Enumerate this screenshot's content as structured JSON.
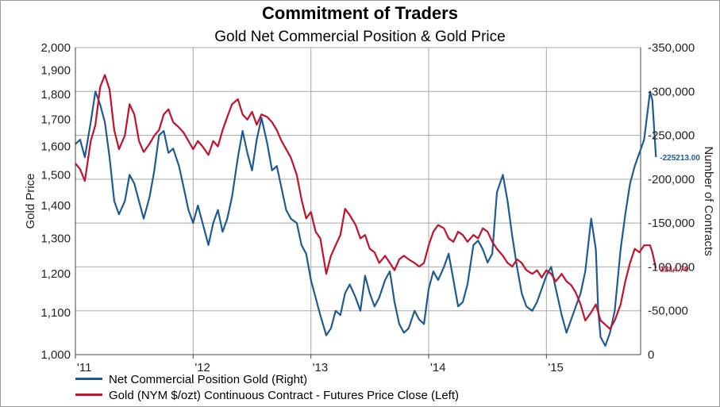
{
  "chart_data": {
    "type": "line",
    "title": "Commitment of Traders",
    "subtitle": "Gold Net Commercial Position & Gold Price",
    "y_left_label": "Gold Price",
    "y_right_label": "Number of Contracts",
    "y_left_ticks": [
      "1,000",
      "1,100",
      "1,200",
      "1,300",
      "1,400",
      "1,500",
      "1,600",
      "1,700",
      "1,800",
      "1,900",
      "2,000"
    ],
    "y_right_ticks": [
      "0",
      "-50,000",
      "-100,000",
      "-150,000",
      "-200,000",
      "-250,000",
      "-300,000",
      "-350,000"
    ],
    "y_left_range": [
      1000,
      2000
    ],
    "y_left_scale": "log",
    "y_right_range": [
      0,
      -350000
    ],
    "x_ticks": [
      "'11",
      "'12",
      "'13",
      "'14",
      "'15"
    ],
    "x_range": [
      2011.0,
      2015.8
    ],
    "grid": "vertical at year starts, horizontal at right-axis ticks",
    "colors": {
      "commercial": "#1f5b93",
      "gold": "#c0122c"
    },
    "series": [
      {
        "name": "Net Commercial Position Gold (Right)",
        "axis": "right",
        "end_label": "-225213.00",
        "points": [
          [
            2011.0,
            -240000
          ],
          [
            2011.04,
            -245000
          ],
          [
            2011.08,
            -225000
          ],
          [
            2011.13,
            -265000
          ],
          [
            2011.17,
            -300000
          ],
          [
            2011.21,
            -285000
          ],
          [
            2011.25,
            -265000
          ],
          [
            2011.29,
            -225000
          ],
          [
            2011.33,
            -175000
          ],
          [
            2011.37,
            -160000
          ],
          [
            2011.42,
            -175000
          ],
          [
            2011.46,
            -205000
          ],
          [
            2011.5,
            -195000
          ],
          [
            2011.54,
            -175000
          ],
          [
            2011.58,
            -155000
          ],
          [
            2011.63,
            -180000
          ],
          [
            2011.67,
            -210000
          ],
          [
            2011.71,
            -250000
          ],
          [
            2011.75,
            -255000
          ],
          [
            2011.79,
            -230000
          ],
          [
            2011.83,
            -235000
          ],
          [
            2011.88,
            -215000
          ],
          [
            2011.92,
            -190000
          ],
          [
            2011.96,
            -165000
          ],
          [
            2012.0,
            -150000
          ],
          [
            2012.04,
            -170000
          ],
          [
            2012.08,
            -150000
          ],
          [
            2012.13,
            -125000
          ],
          [
            2012.17,
            -150000
          ],
          [
            2012.21,
            -165000
          ],
          [
            2012.25,
            -140000
          ],
          [
            2012.29,
            -155000
          ],
          [
            2012.33,
            -180000
          ],
          [
            2012.38,
            -225000
          ],
          [
            2012.42,
            -255000
          ],
          [
            2012.46,
            -230000
          ],
          [
            2012.5,
            -210000
          ],
          [
            2012.54,
            -245000
          ],
          [
            2012.58,
            -270000
          ],
          [
            2012.63,
            -240000
          ],
          [
            2012.67,
            -210000
          ],
          [
            2012.71,
            -215000
          ],
          [
            2012.75,
            -190000
          ],
          [
            2012.79,
            -165000
          ],
          [
            2012.83,
            -155000
          ],
          [
            2012.88,
            -150000
          ],
          [
            2012.92,
            -125000
          ],
          [
            2012.96,
            -115000
          ],
          [
            2013.0,
            -85000
          ],
          [
            2013.04,
            -65000
          ],
          [
            2013.08,
            -45000
          ],
          [
            2013.13,
            -22000
          ],
          [
            2013.17,
            -30000
          ],
          [
            2013.21,
            -50000
          ],
          [
            2013.25,
            -45000
          ],
          [
            2013.29,
            -70000
          ],
          [
            2013.33,
            -80000
          ],
          [
            2013.38,
            -65000
          ],
          [
            2013.42,
            -50000
          ],
          [
            2013.46,
            -90000
          ],
          [
            2013.5,
            -70000
          ],
          [
            2013.54,
            -55000
          ],
          [
            2013.58,
            -65000
          ],
          [
            2013.63,
            -85000
          ],
          [
            2013.67,
            -95000
          ],
          [
            2013.71,
            -60000
          ],
          [
            2013.75,
            -35000
          ],
          [
            2013.79,
            -25000
          ],
          [
            2013.83,
            -30000
          ],
          [
            2013.88,
            -50000
          ],
          [
            2013.92,
            -40000
          ],
          [
            2013.96,
            -35000
          ],
          [
            2014.0,
            -75000
          ],
          [
            2014.04,
            -95000
          ],
          [
            2014.08,
            -85000
          ],
          [
            2014.13,
            -100000
          ],
          [
            2014.17,
            -115000
          ],
          [
            2014.21,
            -85000
          ],
          [
            2014.25,
            -55000
          ],
          [
            2014.29,
            -60000
          ],
          [
            2014.33,
            -80000
          ],
          [
            2014.38,
            -125000
          ],
          [
            2014.42,
            -130000
          ],
          [
            2014.46,
            -120000
          ],
          [
            2014.5,
            -105000
          ],
          [
            2014.54,
            -115000
          ],
          [
            2014.58,
            -185000
          ],
          [
            2014.63,
            -205000
          ],
          [
            2014.67,
            -175000
          ],
          [
            2014.71,
            -135000
          ],
          [
            2014.75,
            -100000
          ],
          [
            2014.79,
            -70000
          ],
          [
            2014.83,
            -55000
          ],
          [
            2014.88,
            -50000
          ],
          [
            2014.92,
            -60000
          ],
          [
            2014.96,
            -75000
          ],
          [
            2015.0,
            -90000
          ],
          [
            2015.04,
            -100000
          ],
          [
            2015.08,
            -75000
          ],
          [
            2015.13,
            -45000
          ],
          [
            2015.17,
            -25000
          ],
          [
            2015.21,
            -40000
          ],
          [
            2015.25,
            -55000
          ],
          [
            2015.29,
            -70000
          ],
          [
            2015.33,
            -95000
          ],
          [
            2015.38,
            -155000
          ],
          [
            2015.42,
            -120000
          ],
          [
            2015.44,
            -50000
          ],
          [
            2015.46,
            -20000
          ],
          [
            2015.5,
            -10000
          ],
          [
            2015.54,
            -25000
          ],
          [
            2015.58,
            -50000
          ],
          [
            2015.63,
            -120000
          ],
          [
            2015.67,
            -160000
          ],
          [
            2015.71,
            -195000
          ],
          [
            2015.75,
            -215000
          ],
          [
            2015.79,
            -230000
          ],
          [
            2015.83,
            -245000
          ],
          [
            2015.88,
            -300000
          ],
          [
            2015.9,
            -290000
          ],
          [
            2015.93,
            -225213
          ]
        ]
      },
      {
        "name": "Gold (NYM $/ozt) Continuous Contract - Futures Price Close  (Left)",
        "axis": "left",
        "end_label": "1214.70",
        "points": [
          [
            2011.0,
            1540
          ],
          [
            2011.04,
            1520
          ],
          [
            2011.08,
            1480
          ],
          [
            2011.13,
            1620
          ],
          [
            2011.17,
            1680
          ],
          [
            2011.21,
            1830
          ],
          [
            2011.25,
            1880
          ],
          [
            2011.29,
            1820
          ],
          [
            2011.33,
            1660
          ],
          [
            2011.37,
            1590
          ],
          [
            2011.42,
            1640
          ],
          [
            2011.46,
            1760
          ],
          [
            2011.5,
            1720
          ],
          [
            2011.54,
            1620
          ],
          [
            2011.58,
            1580
          ],
          [
            2011.63,
            1610
          ],
          [
            2011.67,
            1640
          ],
          [
            2011.71,
            1660
          ],
          [
            2011.75,
            1720
          ],
          [
            2011.79,
            1740
          ],
          [
            2011.83,
            1690
          ],
          [
            2011.88,
            1670
          ],
          [
            2011.92,
            1650
          ],
          [
            2011.96,
            1620
          ],
          [
            2012.0,
            1590
          ],
          [
            2012.04,
            1620
          ],
          [
            2012.08,
            1600
          ],
          [
            2012.13,
            1570
          ],
          [
            2012.17,
            1620
          ],
          [
            2012.21,
            1600
          ],
          [
            2012.25,
            1660
          ],
          [
            2012.29,
            1710
          ],
          [
            2012.33,
            1760
          ],
          [
            2012.38,
            1780
          ],
          [
            2012.42,
            1720
          ],
          [
            2012.46,
            1700
          ],
          [
            2012.5,
            1730
          ],
          [
            2012.54,
            1680
          ],
          [
            2012.58,
            1720
          ],
          [
            2012.63,
            1710
          ],
          [
            2012.67,
            1690
          ],
          [
            2012.71,
            1660
          ],
          [
            2012.75,
            1620
          ],
          [
            2012.79,
            1590
          ],
          [
            2012.83,
            1560
          ],
          [
            2012.88,
            1500
          ],
          [
            2012.92,
            1420
          ],
          [
            2012.96,
            1360
          ],
          [
            2013.0,
            1380
          ],
          [
            2013.04,
            1320
          ],
          [
            2013.08,
            1300
          ],
          [
            2013.13,
            1200
          ],
          [
            2013.17,
            1250
          ],
          [
            2013.21,
            1280
          ],
          [
            2013.25,
            1310
          ],
          [
            2013.29,
            1390
          ],
          [
            2013.33,
            1370
          ],
          [
            2013.38,
            1340
          ],
          [
            2013.42,
            1300
          ],
          [
            2013.46,
            1310
          ],
          [
            2013.5,
            1270
          ],
          [
            2013.54,
            1260
          ],
          [
            2013.58,
            1230
          ],
          [
            2013.63,
            1250
          ],
          [
            2013.67,
            1230
          ],
          [
            2013.71,
            1210
          ],
          [
            2013.75,
            1240
          ],
          [
            2013.79,
            1250
          ],
          [
            2013.83,
            1240
          ],
          [
            2013.88,
            1230
          ],
          [
            2013.92,
            1220
          ],
          [
            2013.96,
            1230
          ],
          [
            2014.0,
            1280
          ],
          [
            2014.04,
            1320
          ],
          [
            2014.08,
            1340
          ],
          [
            2014.13,
            1330
          ],
          [
            2014.17,
            1300
          ],
          [
            2014.21,
            1290
          ],
          [
            2014.25,
            1320
          ],
          [
            2014.29,
            1310
          ],
          [
            2014.33,
            1290
          ],
          [
            2014.38,
            1310
          ],
          [
            2014.42,
            1300
          ],
          [
            2014.46,
            1330
          ],
          [
            2014.5,
            1320
          ],
          [
            2014.54,
            1290
          ],
          [
            2014.58,
            1270
          ],
          [
            2014.63,
            1250
          ],
          [
            2014.67,
            1230
          ],
          [
            2014.71,
            1220
          ],
          [
            2014.75,
            1240
          ],
          [
            2014.79,
            1230
          ],
          [
            2014.83,
            1210
          ],
          [
            2014.88,
            1200
          ],
          [
            2014.92,
            1210
          ],
          [
            2014.96,
            1190
          ],
          [
            2015.0,
            1210
          ],
          [
            2015.04,
            1200
          ],
          [
            2015.08,
            1180
          ],
          [
            2015.13,
            1200
          ],
          [
            2015.17,
            1180
          ],
          [
            2015.21,
            1170
          ],
          [
            2015.25,
            1150
          ],
          [
            2015.29,
            1120
          ],
          [
            2015.33,
            1080
          ],
          [
            2015.38,
            1100
          ],
          [
            2015.42,
            1120
          ],
          [
            2015.46,
            1080
          ],
          [
            2015.5,
            1070
          ],
          [
            2015.54,
            1060
          ],
          [
            2015.58,
            1080
          ],
          [
            2015.63,
            1120
          ],
          [
            2015.67,
            1180
          ],
          [
            2015.71,
            1230
          ],
          [
            2015.75,
            1270
          ],
          [
            2015.79,
            1260
          ],
          [
            2015.83,
            1280
          ],
          [
            2015.88,
            1280
          ],
          [
            2015.9,
            1260
          ],
          [
            2015.93,
            1214.7
          ]
        ]
      }
    ]
  }
}
